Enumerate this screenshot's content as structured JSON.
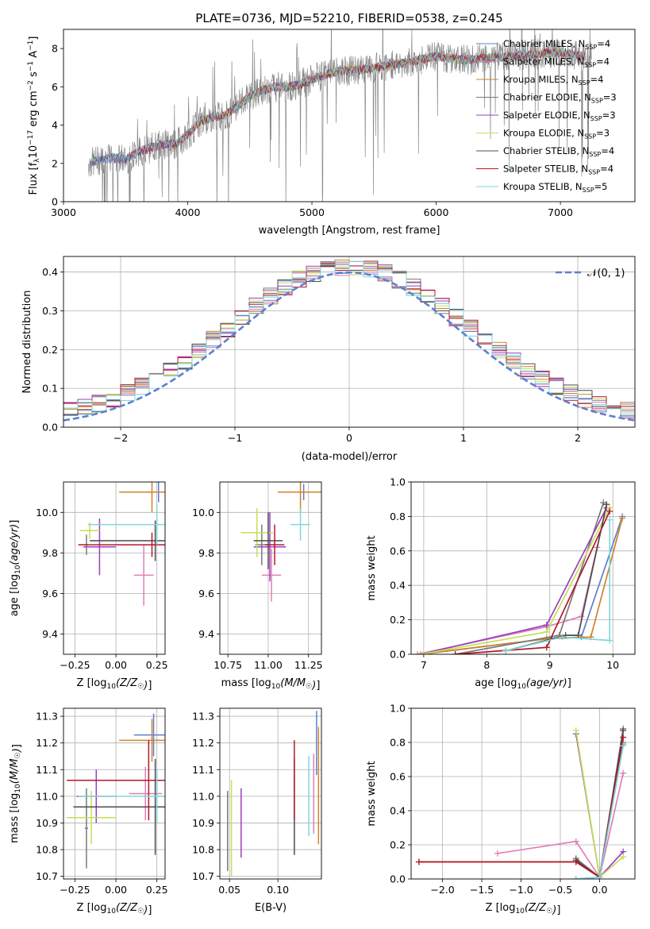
{
  "colors": {
    "c0": "#5c7fcf",
    "c1": "#e07fb8",
    "c2": "#d0822a",
    "c3": "#7a7a7a",
    "c4": "#9a3fbf",
    "c5": "#c3df5a",
    "c6": "#4c4c4c",
    "c7": "#b2182b",
    "c8": "#7fd6dc",
    "spectrum": "#8a8a8a"
  },
  "chart_data": [
    {
      "id": "spectrum",
      "type": "line",
      "title": "PLATE=0736, MJD=52210, FIBERID=0538, z=0.245",
      "xlabel": "wavelength [Angstrom, rest frame]",
      "ylabel": "Flux [f_λ 10^-17 erg cm^-2 s^-1 A^-1]",
      "xlim": [
        3000,
        7600
      ],
      "ylim": [
        0,
        9
      ],
      "xticks": [
        "3000",
        "4000",
        "5000",
        "6000",
        "7000"
      ],
      "yticks": [
        "0",
        "2",
        "4",
        "6",
        "8"
      ],
      "legend": "top-right",
      "series_names": [
        "Chabrier MILES, N_SSP=4",
        "Salpeter MILES, N_SSP=4",
        "Kroupa MILES, N_SSP=4",
        "Chabrier ELODIE, N_SSP=3",
        "Salpeter ELODIE, N_SSP=3",
        "Kroupa ELODIE, N_SSP=3",
        "Chabrier STELIB, N_SSP=4",
        "Salpeter STELIB, N_SSP=4",
        "Kroupa STELIB, N_SSP=5"
      ],
      "continuum": {
        "x": [
          3200,
          3300,
          3400,
          3500,
          3600,
          3700,
          3800,
          3900,
          4000,
          4100,
          4200,
          4300,
          4400,
          4500,
          4600,
          4700,
          4800,
          4900,
          5000,
          5200,
          5400,
          5600,
          5800,
          6000,
          6200,
          6400,
          6600,
          6800,
          7000,
          7200
        ],
        "y": [
          2.0,
          2.2,
          2.3,
          2.2,
          2.6,
          2.8,
          3.0,
          3.0,
          3.5,
          4.2,
          4.4,
          4.5,
          5.0,
          5.5,
          5.8,
          6.0,
          6.0,
          6.1,
          6.4,
          6.8,
          6.9,
          7.1,
          7.3,
          7.6,
          7.4,
          7.5,
          7.6,
          7.7,
          7.8,
          7.6
        ]
      }
    },
    {
      "id": "residuals",
      "type": "step",
      "xlabel": "(data-model)/error",
      "ylabel": "Normed distribution",
      "xlim": [
        -2.5,
        2.5
      ],
      "ylim": [
        0,
        0.44
      ],
      "xticks": [
        "−2",
        "−1",
        "0",
        "1",
        "2"
      ],
      "yticks": [
        "0.0",
        "0.1",
        "0.2",
        "0.3",
        "0.4"
      ],
      "legend_label": "𝒩(0, 1)",
      "legend": "top-right",
      "bins": 40,
      "series_count": 9
    },
    {
      "id": "age_vs_Z",
      "type": "errorbar",
      "xlabel": "Z [log10(Z/Z☉)]",
      "ylabel": "age  [log10(age/yr)]",
      "xlim": [
        -0.32,
        0.3
      ],
      "ylim": [
        9.3,
        10.15
      ],
      "xticks": [
        "−0.25",
        "0.00",
        "0.25"
      ],
      "yticks": [
        "9.4",
        "9.6",
        "9.8",
        "10.0"
      ],
      "points": [
        {
          "s": 0,
          "x": 0.26,
          "y": 10.1,
          "xerr": 0.02,
          "yerr": 0.05
        },
        {
          "s": 1,
          "x": 0.17,
          "y": 9.69,
          "xerr": 0.06,
          "yerr": 0.15
        },
        {
          "s": 2,
          "x": 0.22,
          "y": 10.1,
          "xerr": 0.2,
          "yerr": 0.1
        },
        {
          "s": 3,
          "x": -0.18,
          "y": 9.84,
          "xerr": 0.01,
          "yerr": 0.05
        },
        {
          "s": 4,
          "x": -0.1,
          "y": 9.83,
          "xerr": 0.1,
          "yerr": 0.14
        },
        {
          "s": 5,
          "x": -0.16,
          "y": 9.91,
          "xerr": 0.06,
          "yerr": 0.04
        },
        {
          "s": 6,
          "x": 0.24,
          "y": 9.86,
          "xerr": 0.4,
          "yerr": 0.1
        },
        {
          "s": 7,
          "x": 0.22,
          "y": 9.84,
          "xerr": 0.45,
          "yerr": 0.06
        },
        {
          "s": 8,
          "x": 0.25,
          "y": 9.94,
          "xerr": 0.42,
          "yerr": 0.1
        }
      ]
    },
    {
      "id": "age_vs_mass",
      "type": "errorbar",
      "xlabel": "mass [log10(M/M☉)]",
      "ylabel": "",
      "xlim": [
        10.7,
        11.33
      ],
      "ylim": [
        9.3,
        10.15
      ],
      "xticks": [
        "10.75",
        "11.00",
        "11.25"
      ],
      "yticks": [
        "9.4",
        "9.6",
        "9.8",
        "10.0"
      ],
      "points": [
        {
          "s": 0,
          "x": 11.22,
          "y": 10.1,
          "xerr": 0.1,
          "yerr": 0.04
        },
        {
          "s": 1,
          "x": 11.02,
          "y": 9.69,
          "xerr": 0.06,
          "yerr": 0.13
        },
        {
          "s": 2,
          "x": 11.2,
          "y": 10.1,
          "xerr": 0.14,
          "yerr": 0.1
        },
        {
          "s": 3,
          "x": 10.96,
          "y": 9.84,
          "xerr": 0.04,
          "yerr": 0.1
        },
        {
          "s": 4,
          "x": 11.01,
          "y": 9.83,
          "xerr": 0.1,
          "yerr": 0.17
        },
        {
          "s": 5,
          "x": 10.93,
          "y": 9.9,
          "xerr": 0.1,
          "yerr": 0.12
        },
        {
          "s": 6,
          "x": 11.0,
          "y": 9.86,
          "xerr": 0.09,
          "yerr": 0.14
        },
        {
          "s": 7,
          "x": 11.04,
          "y": 9.84,
          "xerr": 0.06,
          "yerr": 0.1
        },
        {
          "s": 8,
          "x": 11.2,
          "y": 9.94,
          "xerr": 0.06,
          "yerr": 0.08
        }
      ]
    },
    {
      "id": "weight_vs_age",
      "type": "line",
      "xlabel": "age  [log10(age/yr)]",
      "ylabel": "mass weight",
      "xlim": [
        6.8,
        10.35
      ],
      "ylim": [
        0,
        1.0
      ],
      "xticks": [
        "7",
        "8",
        "9",
        "10"
      ],
      "yticks": [
        "0.0",
        "0.2",
        "0.4",
        "0.6",
        "0.8",
        "1.0"
      ],
      "series": [
        {
          "s": 0,
          "x": [
            6.95,
            8.95,
            9.5,
            10.15
          ],
          "y": [
            0.0,
            0.09,
            0.1,
            0.8
          ]
        },
        {
          "s": 1,
          "x": [
            6.9,
            8.95,
            9.5,
            9.75
          ],
          "y": [
            0.0,
            0.16,
            0.22,
            0.62
          ]
        },
        {
          "s": 2,
          "x": [
            6.95,
            8.95,
            9.65,
            10.15
          ],
          "y": [
            0.0,
            0.09,
            0.1,
            0.79
          ]
        },
        {
          "s": 3,
          "x": [
            7.5,
            9.15,
            9.85
          ],
          "y": [
            0.0,
            0.11,
            0.88
          ]
        },
        {
          "s": 4,
          "x": [
            6.95,
            8.95,
            9.9
          ],
          "y": [
            0.0,
            0.17,
            0.85
          ]
        },
        {
          "s": 5,
          "x": [
            6.95,
            8.95,
            9.95
          ],
          "y": [
            0.0,
            0.13,
            0.85
          ]
        },
        {
          "s": 6,
          "x": [
            8.3,
            9.25,
            9.45,
            9.9
          ],
          "y": [
            0.02,
            0.11,
            0.11,
            0.87
          ]
        },
        {
          "s": 7,
          "x": [
            7.5,
            8.95,
            9.95
          ],
          "y": [
            0.0,
            0.04,
            0.83
          ]
        },
        {
          "s": 8,
          "x": [
            8.3,
            9.2,
            9.95,
            9.95
          ],
          "y": [
            0.02,
            0.1,
            0.08,
            0.78
          ]
        }
      ]
    },
    {
      "id": "mass_vs_Z",
      "type": "errorbar",
      "xlabel": "Z [log10(Z/Z☉)]",
      "ylabel": "mass [log10(M/M☉)]",
      "xlim": [
        -0.32,
        0.3
      ],
      "ylim": [
        10.69,
        11.33
      ],
      "xticks": [
        "−0.25",
        "0.00",
        "0.25"
      ],
      "yticks": [
        "10.7",
        "10.8",
        "10.9",
        "11.0",
        "11.1",
        "11.2",
        "11.3"
      ],
      "points": [
        {
          "s": 0,
          "x": 0.23,
          "y": 11.23,
          "xerr": 0.12,
          "yerr": 0.08
        },
        {
          "s": 1,
          "x": 0.18,
          "y": 11.01,
          "xerr": 0.1,
          "yerr": 0.1
        },
        {
          "s": 2,
          "x": 0.22,
          "y": 11.21,
          "xerr": 0.2,
          "yerr": 0.08
        },
        {
          "s": 3,
          "x": -0.18,
          "y": 10.88,
          "xerr": 0.01,
          "yerr": 0.15
        },
        {
          "s": 4,
          "x": -0.12,
          "y": 11.0,
          "xerr": 0.12,
          "yerr": 0.1
        },
        {
          "s": 5,
          "x": -0.15,
          "y": 10.92,
          "xerr": 0.15,
          "yerr": 0.1
        },
        {
          "s": 6,
          "x": 0.24,
          "y": 10.96,
          "xerr": 0.5,
          "yerr": 0.18
        },
        {
          "s": 7,
          "x": 0.2,
          "y": 11.06,
          "xerr": 0.5,
          "yerr": 0.15
        },
        {
          "s": 8,
          "x": 0.25,
          "y": 11.0,
          "xerr": 0.48,
          "yerr": 0.1
        }
      ]
    },
    {
      "id": "mass_vs_EBV",
      "type": "errorbar",
      "xlabel": "E(B-V)",
      "ylabel": "",
      "xlim": [
        0.04,
        0.145
      ],
      "ylim": [
        10.69,
        11.33
      ],
      "xticks": [
        "0.05",
        "0.10"
      ],
      "yticks": [
        "10.7",
        "10.8",
        "10.9",
        "11.0",
        "11.1",
        "11.2",
        "11.3"
      ],
      "points": [
        {
          "s": 0,
          "x": 0.14,
          "y": 11.2,
          "yerr": 0.12
        },
        {
          "s": 1,
          "x": 0.137,
          "y": 11.01,
          "yerr": 0.15
        },
        {
          "s": 2,
          "x": 0.142,
          "y": 11.04,
          "yerr": 0.22
        },
        {
          "s": 3,
          "x": 0.048,
          "y": 10.87,
          "yerr": 0.15
        },
        {
          "s": 4,
          "x": 0.062,
          "y": 10.9,
          "yerr": 0.13
        },
        {
          "s": 5,
          "x": 0.052,
          "y": 10.88,
          "yerr": 0.18
        },
        {
          "s": 6,
          "x": 0.117,
          "y": 10.96,
          "yerr": 0.18
        },
        {
          "s": 7,
          "x": 0.117,
          "y": 11.06,
          "yerr": 0.15
        },
        {
          "s": 8,
          "x": 0.132,
          "y": 11.0,
          "yerr": 0.15
        }
      ]
    },
    {
      "id": "weight_vs_Z",
      "type": "line",
      "xlabel": "Z [log10(Z/Z☉)]",
      "ylabel": "mass weight",
      "xlim": [
        -2.4,
        0.45
      ],
      "ylim": [
        0,
        1.0
      ],
      "xticks": [
        "−2.0",
        "−1.5",
        "−1.0",
        "−0.5",
        "0.0"
      ],
      "yticks": [
        "0.0",
        "0.2",
        "0.4",
        "0.6",
        "0.8",
        "1.0"
      ],
      "series": [
        {
          "s": 0,
          "x": [
            -0.3,
            0.0,
            0.3
          ],
          "y": [
            0.0,
            0.01,
            0.8
          ]
        },
        {
          "s": 1,
          "x": [
            -1.3,
            -0.3,
            0.0,
            0.3
          ],
          "y": [
            0.15,
            0.22,
            0.01,
            0.62
          ]
        },
        {
          "s": 2,
          "x": [
            -2.3,
            -0.3,
            0.0,
            0.3
          ],
          "y": [
            0.1,
            0.1,
            0.01,
            0.79
          ]
        },
        {
          "s": 3,
          "x": [
            -0.3,
            0.0,
            0.3
          ],
          "y": [
            0.12,
            0.01,
            0.88
          ]
        },
        {
          "s": 4,
          "x": [
            -0.3,
            0.0,
            0.3
          ],
          "y": [
            0.85,
            0.01,
            0.16
          ]
        },
        {
          "s": 5,
          "x": [
            -0.3,
            0.0,
            0.3
          ],
          "y": [
            0.87,
            0.01,
            0.13
          ]
        },
        {
          "s": 6,
          "x": [
            -0.3,
            0.0,
            0.3
          ],
          "y": [
            0.11,
            0.01,
            0.87
          ]
        },
        {
          "s": 7,
          "x": [
            -2.3,
            -0.3,
            0.0,
            0.3
          ],
          "y": [
            0.1,
            0.1,
            0.01,
            0.83
          ]
        },
        {
          "s": 8,
          "x": [
            -0.3,
            0.0,
            0.3
          ],
          "y": [
            0.0,
            0.01,
            0.78
          ]
        }
      ]
    }
  ]
}
